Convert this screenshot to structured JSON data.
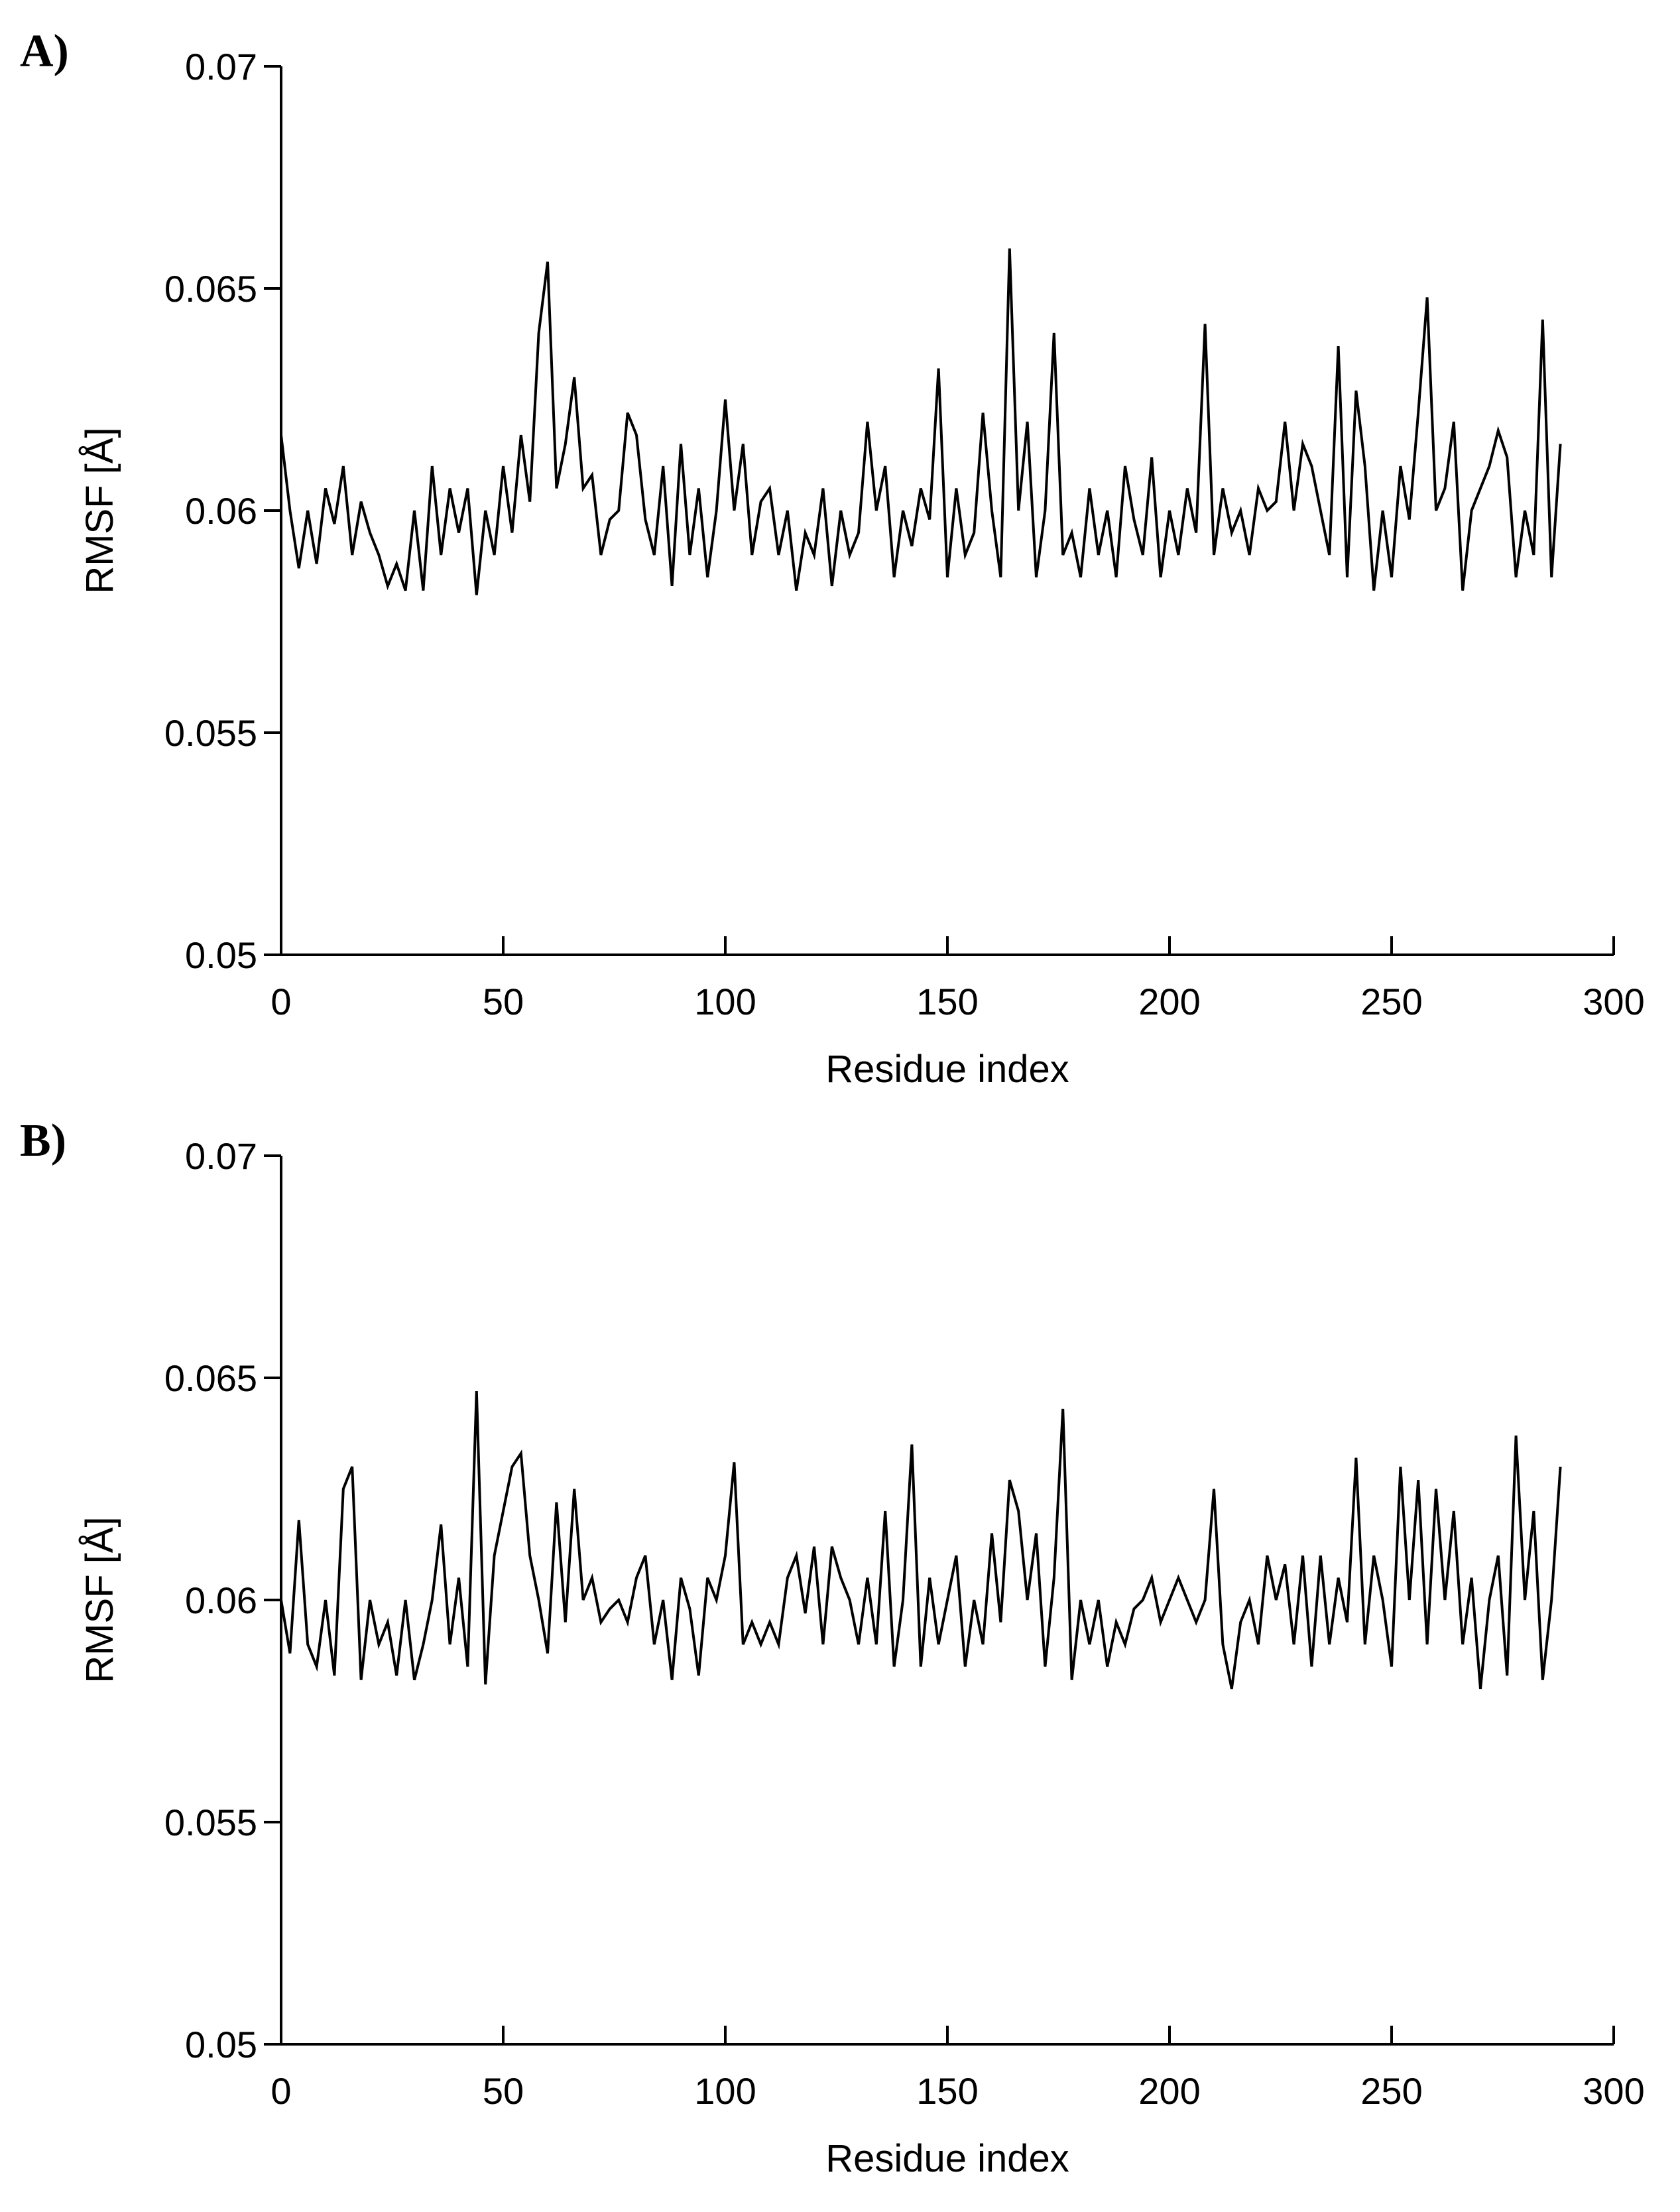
{
  "chart_data": [
    {
      "type": "line",
      "panel_label": "A)",
      "title": "",
      "xlabel": "Residue index",
      "ylabel": "RMSF [Å]",
      "xlim": [
        0,
        300
      ],
      "ylim": [
        0.05,
        0.07
      ],
      "xticks": [
        0,
        50,
        100,
        150,
        200,
        250,
        300
      ],
      "xtick_labels": [
        "0",
        "50",
        "100",
        "150",
        "200",
        "250",
        "300"
      ],
      "yticks": [
        0.05,
        0.055,
        0.06,
        0.065,
        0.07
      ],
      "ytick_labels": [
        "0.05",
        "0.055",
        "0.06",
        "0.065",
        "0.07"
      ],
      "grid": false,
      "series": [
        {
          "name": "RMSF",
          "x": [
            0,
            2,
            4,
            6,
            8,
            10,
            12,
            14,
            16,
            18,
            20,
            22,
            24,
            26,
            28,
            30,
            32,
            34,
            36,
            38,
            40,
            42,
            44,
            46,
            48,
            50,
            52,
            54,
            56,
            58,
            60,
            62,
            64,
            66,
            68,
            70,
            72,
            74,
            76,
            78,
            80,
            82,
            84,
            86,
            88,
            90,
            92,
            94,
            96,
            98,
            100,
            102,
            104,
            106,
            108,
            110,
            112,
            114,
            116,
            118,
            120,
            122,
            124,
            126,
            128,
            130,
            132,
            134,
            136,
            138,
            140,
            142,
            144,
            146,
            148,
            150,
            152,
            154,
            156,
            158,
            160,
            162,
            164,
            166,
            168,
            170,
            172,
            174,
            176,
            178,
            180,
            182,
            184,
            186,
            188,
            190,
            192,
            194,
            196,
            198,
            200,
            202,
            204,
            206,
            208,
            210,
            212,
            214,
            216,
            218,
            220,
            222,
            224,
            226,
            228,
            230,
            232,
            234,
            236,
            238,
            240,
            242,
            244,
            246,
            248,
            250,
            252,
            254,
            256,
            258,
            260,
            262,
            264,
            266,
            268,
            270,
            272,
            274,
            276,
            278,
            280,
            282,
            284,
            286,
            288
          ],
          "values": [
            0.0617,
            0.06,
            0.0587,
            0.06,
            0.0588,
            0.0605,
            0.0597,
            0.061,
            0.059,
            0.0602,
            0.0595,
            0.059,
            0.0583,
            0.0588,
            0.0582,
            0.06,
            0.0582,
            0.061,
            0.059,
            0.0605,
            0.0595,
            0.0605,
            0.0581,
            0.06,
            0.059,
            0.061,
            0.0595,
            0.0617,
            0.0602,
            0.064,
            0.0656,
            0.0605,
            0.0615,
            0.063,
            0.0605,
            0.0608,
            0.059,
            0.0598,
            0.06,
            0.0622,
            0.0617,
            0.0598,
            0.059,
            0.061,
            0.0583,
            0.0615,
            0.059,
            0.0605,
            0.0585,
            0.06,
            0.0625,
            0.06,
            0.0615,
            0.059,
            0.0602,
            0.0605,
            0.059,
            0.06,
            0.0582,
            0.0595,
            0.059,
            0.0605,
            0.0583,
            0.06,
            0.059,
            0.0595,
            0.062,
            0.06,
            0.061,
            0.0585,
            0.06,
            0.0592,
            0.0605,
            0.0598,
            0.0632,
            0.0585,
            0.0605,
            0.059,
            0.0595,
            0.0622,
            0.06,
            0.0585,
            0.0659,
            0.06,
            0.062,
            0.0585,
            0.06,
            0.064,
            0.059,
            0.0595,
            0.0585,
            0.0605,
            0.059,
            0.06,
            0.0585,
            0.061,
            0.0598,
            0.059,
            0.0612,
            0.0585,
            0.06,
            0.059,
            0.0605,
            0.0595,
            0.0642,
            0.059,
            0.0605,
            0.0595,
            0.06,
            0.059,
            0.0605,
            0.06,
            0.0602,
            0.062,
            0.06,
            0.0615,
            0.061,
            0.06,
            0.059,
            0.0637,
            0.0585,
            0.0627,
            0.061,
            0.0582,
            0.06,
            0.0585,
            0.061,
            0.0598,
            0.0622,
            0.0648,
            0.06,
            0.0605,
            0.062,
            0.0582,
            0.06,
            0.0605,
            0.061,
            0.0618,
            0.0612,
            0.0585,
            0.06,
            0.059,
            0.0643,
            0.0585,
            0.0615
          ]
        }
      ]
    },
    {
      "type": "line",
      "panel_label": "B)",
      "title": "",
      "xlabel": "Residue index",
      "ylabel": "RMSF [Å]",
      "xlim": [
        0,
        300
      ],
      "ylim": [
        0.05,
        0.07
      ],
      "xticks": [
        0,
        50,
        100,
        150,
        200,
        250,
        300
      ],
      "xtick_labels": [
        "0",
        "50",
        "100",
        "150",
        "200",
        "250",
        "300"
      ],
      "yticks": [
        0.05,
        0.055,
        0.06,
        0.065,
        0.07
      ],
      "ytick_labels": [
        "0.05",
        "0.055",
        "0.06",
        "0.065",
        "0.07"
      ],
      "grid": false,
      "series": [
        {
          "name": "RMSF",
          "x": [
            0,
            2,
            4,
            6,
            8,
            10,
            12,
            14,
            16,
            18,
            20,
            22,
            24,
            26,
            28,
            30,
            32,
            34,
            36,
            38,
            40,
            42,
            44,
            46,
            48,
            50,
            52,
            54,
            56,
            58,
            60,
            62,
            64,
            66,
            68,
            70,
            72,
            74,
            76,
            78,
            80,
            82,
            84,
            86,
            88,
            90,
            92,
            94,
            96,
            98,
            100,
            102,
            104,
            106,
            108,
            110,
            112,
            114,
            116,
            118,
            120,
            122,
            124,
            126,
            128,
            130,
            132,
            134,
            136,
            138,
            140,
            142,
            144,
            146,
            148,
            150,
            152,
            154,
            156,
            158,
            160,
            162,
            164,
            166,
            168,
            170,
            172,
            174,
            176,
            178,
            180,
            182,
            184,
            186,
            188,
            190,
            192,
            194,
            196,
            198,
            200,
            202,
            204,
            206,
            208,
            210,
            212,
            214,
            216,
            218,
            220,
            222,
            224,
            226,
            228,
            230,
            232,
            234,
            236,
            238,
            240,
            242,
            244,
            246,
            248,
            250,
            252,
            254,
            256,
            258,
            260,
            262,
            264,
            266,
            268,
            270,
            272,
            274,
            276,
            278,
            280,
            282,
            284,
            286,
            288
          ],
          "values": [
            0.06,
            0.0588,
            0.0618,
            0.059,
            0.0585,
            0.06,
            0.0583,
            0.0625,
            0.063,
            0.0582,
            0.06,
            0.059,
            0.0595,
            0.0583,
            0.06,
            0.0582,
            0.059,
            0.06,
            0.0617,
            0.059,
            0.0605,
            0.0585,
            0.0647,
            0.0581,
            0.061,
            0.062,
            0.063,
            0.0633,
            0.061,
            0.06,
            0.0588,
            0.0622,
            0.0595,
            0.0625,
            0.06,
            0.0605,
            0.0595,
            0.0598,
            0.06,
            0.0595,
            0.0605,
            0.061,
            0.059,
            0.06,
            0.0582,
            0.0605,
            0.0598,
            0.0583,
            0.0605,
            0.06,
            0.061,
            0.0631,
            0.059,
            0.0595,
            0.059,
            0.0595,
            0.059,
            0.0605,
            0.061,
            0.0597,
            0.0612,
            0.059,
            0.0612,
            0.0605,
            0.06,
            0.059,
            0.0605,
            0.059,
            0.062,
            0.0585,
            0.06,
            0.0635,
            0.0585,
            0.0605,
            0.059,
            0.06,
            0.061,
            0.0585,
            0.06,
            0.059,
            0.0615,
            0.0595,
            0.0627,
            0.062,
            0.06,
            0.0615,
            0.0585,
            0.0605,
            0.0643,
            0.0582,
            0.06,
            0.059,
            0.06,
            0.0585,
            0.0595,
            0.059,
            0.0598,
            0.06,
            0.0605,
            0.0595,
            0.06,
            0.0605,
            0.06,
            0.0595,
            0.06,
            0.0625,
            0.059,
            0.058,
            0.0595,
            0.06,
            0.059,
            0.061,
            0.06,
            0.0608,
            0.059,
            0.061,
            0.0585,
            0.061,
            0.059,
            0.0605,
            0.0595,
            0.0632,
            0.059,
            0.061,
            0.06,
            0.0585,
            0.063,
            0.06,
            0.0627,
            0.059,
            0.0625,
            0.06,
            0.062,
            0.059,
            0.0605,
            0.058,
            0.06,
            0.061,
            0.0583,
            0.0637,
            0.06,
            0.062,
            0.0582,
            0.06,
            0.063
          ]
        }
      ]
    }
  ]
}
